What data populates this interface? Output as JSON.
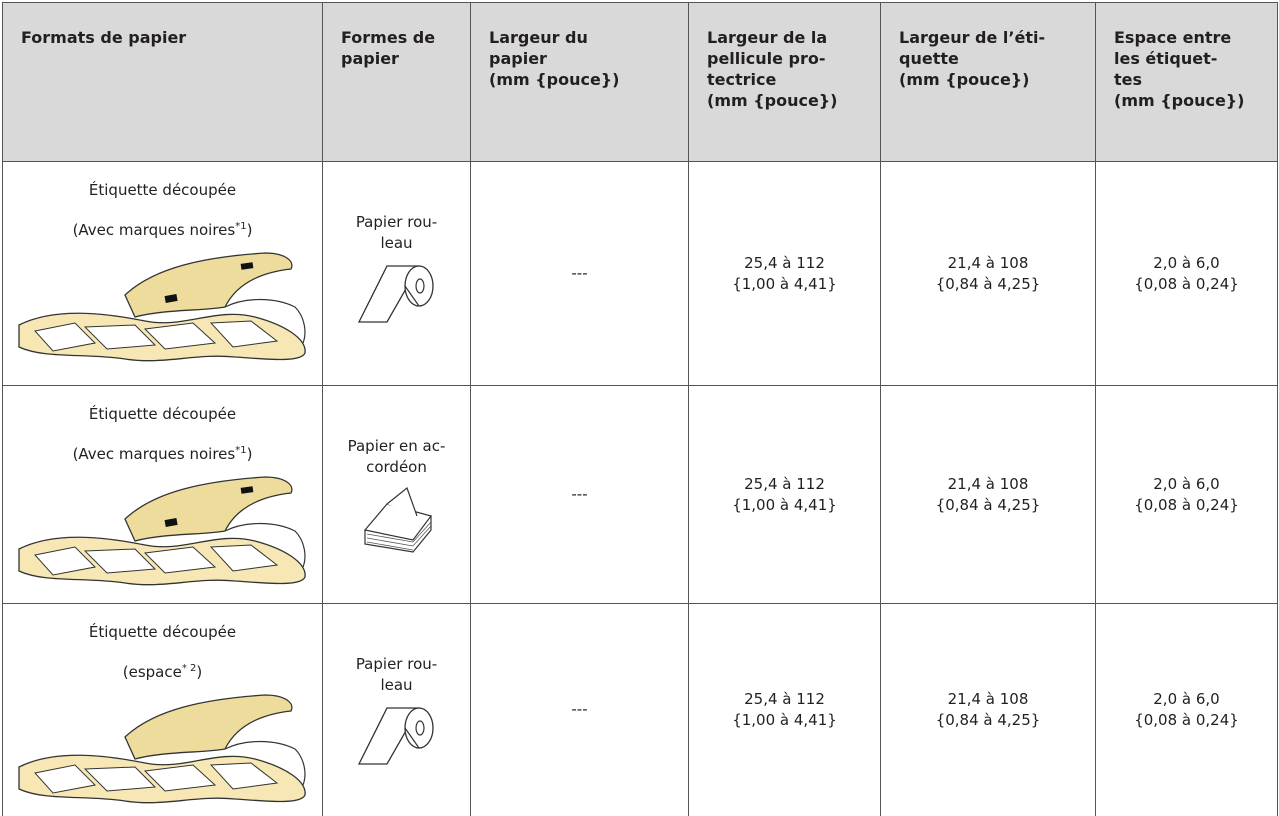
{
  "table": {
    "header": [
      [
        "Formats de papier"
      ],
      [
        "Formes de",
        "papier"
      ],
      [
        "Largeur du",
        "papier",
        "(mm {pouce})"
      ],
      [
        "Largeur de la",
        "pellicule pro-",
        "tectrice",
        "(mm {pouce})"
      ],
      [
        "Largeur de l’éti-",
        "quette",
        "(mm {pouce})"
      ],
      [
        "Espace entre",
        "les étiquet-",
        "tes",
        "(mm {pouce})"
      ]
    ],
    "rows": [
      {
        "format": "Étiquette découpée",
        "note": {
          "text": "(Avec marques noires",
          "sup": "*1",
          "close": ")"
        },
        "form": [
          "Papier rou-",
          "leau"
        ],
        "paper_width": "---",
        "film_width": [
          "25,4 à 112",
          "{1,00 à 4,41}"
        ],
        "label_width": [
          "21,4 à 108",
          "{0,84 à 4,25}"
        ],
        "gap": [
          "2,0 à 6,0",
          "{0,08 à 0,24}"
        ]
      },
      {
        "format": "Étiquette découpée",
        "note": {
          "text": "(Avec marques noires",
          "sup": "*1",
          "close": ")"
        },
        "form": [
          "Papier en ac-",
          "cordéon"
        ],
        "paper_width": "---",
        "film_width": [
          "25,4 à 112",
          "{1,00 à 4,41}"
        ],
        "label_width": [
          "21,4 à 108",
          "{0,84 à 4,25}"
        ],
        "gap": [
          "2,0 à 6,0",
          "{0,08 à 0,24}"
        ]
      },
      {
        "format": "Étiquette découpée",
        "note": {
          "text": "(espace",
          "sup": "* 2",
          "close": ")"
        },
        "form": [
          "Papier rou-",
          "leau"
        ],
        "paper_width": "---",
        "film_width": [
          "25,4 à 112",
          "{1,00 à 4,41}"
        ],
        "label_width": [
          "21,4 à 108",
          "{0,84 à 4,25}"
        ],
        "gap": [
          "2,0 à 6,0",
          "{0,08 à 0,24}"
        ]
      }
    ]
  }
}
